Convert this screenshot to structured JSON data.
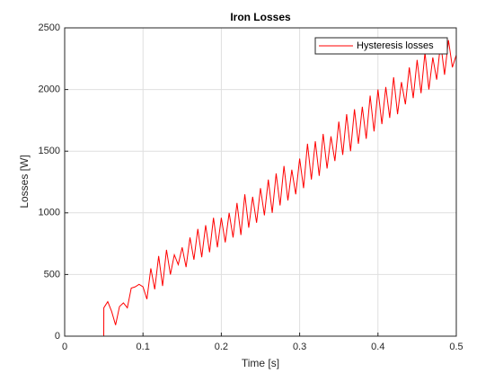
{
  "chart_data": {
    "type": "line",
    "title": "Iron Losses",
    "xlabel": "Time [s]",
    "ylabel": "Losses [W]",
    "xlim": [
      0,
      0.5
    ],
    "ylim": [
      0,
      2500
    ],
    "xticks": [
      0,
      0.1,
      0.2,
      0.3,
      0.4,
      0.5
    ],
    "yticks": [
      0,
      500,
      1000,
      1500,
      2000,
      2500
    ],
    "grid": true,
    "legend": "northeast",
    "x": [
      0,
      0.0499,
      0.05,
      0.055,
      0.06,
      0.065,
      0.07,
      0.075,
      0.08,
      0.085,
      0.09,
      0.095,
      0.1,
      0.105,
      0.11,
      0.115,
      0.12,
      0.125,
      0.13,
      0.135,
      0.14,
      0.145,
      0.15,
      0.155,
      0.16,
      0.165,
      0.17,
      0.175,
      0.18,
      0.185,
      0.19,
      0.195,
      0.2,
      0.205,
      0.21,
      0.215,
      0.22,
      0.225,
      0.23,
      0.235,
      0.24,
      0.245,
      0.25,
      0.255,
      0.26,
      0.265,
      0.27,
      0.275,
      0.28,
      0.285,
      0.29,
      0.295,
      0.3,
      0.305,
      0.31,
      0.315,
      0.32,
      0.325,
      0.33,
      0.335,
      0.34,
      0.345,
      0.35,
      0.355,
      0.36,
      0.365,
      0.37,
      0.375,
      0.38,
      0.385,
      0.39,
      0.395,
      0.4,
      0.405,
      0.41,
      0.415,
      0.42,
      0.425,
      0.43,
      0.435,
      0.44,
      0.445,
      0.45,
      0.455,
      0.46,
      0.465,
      0.47,
      0.475,
      0.48,
      0.485,
      0.49,
      0.495,
      0.5
    ],
    "series": [
      {
        "name": "Hysteresis losses",
        "color": "#ff0000",
        "values": [
          0,
          0,
          230,
          280,
          200,
          90,
          240,
          270,
          230,
          390,
          400,
          420,
          400,
          300,
          550,
          380,
          650,
          407,
          700,
          500,
          660,
          580,
          720,
          560,
          800,
          620,
          870,
          640,
          900,
          680,
          960,
          720,
          960,
          760,
          1000,
          800,
          1080,
          820,
          1150,
          880,
          1130,
          920,
          1200,
          980,
          1270,
          1000,
          1320,
          1060,
          1380,
          1100,
          1350,
          1150,
          1440,
          1200,
          1560,
          1270,
          1580,
          1300,
          1640,
          1360,
          1620,
          1420,
          1740,
          1470,
          1800,
          1500,
          1840,
          1560,
          1860,
          1600,
          1950,
          1660,
          2000,
          1720,
          2020,
          1770,
          2100,
          1800,
          2060,
          1880,
          2180,
          1930,
          2240,
          1970,
          2300,
          2000,
          2260,
          2080,
          2380,
          2120,
          2400,
          2180,
          2280
        ]
      }
    ]
  }
}
